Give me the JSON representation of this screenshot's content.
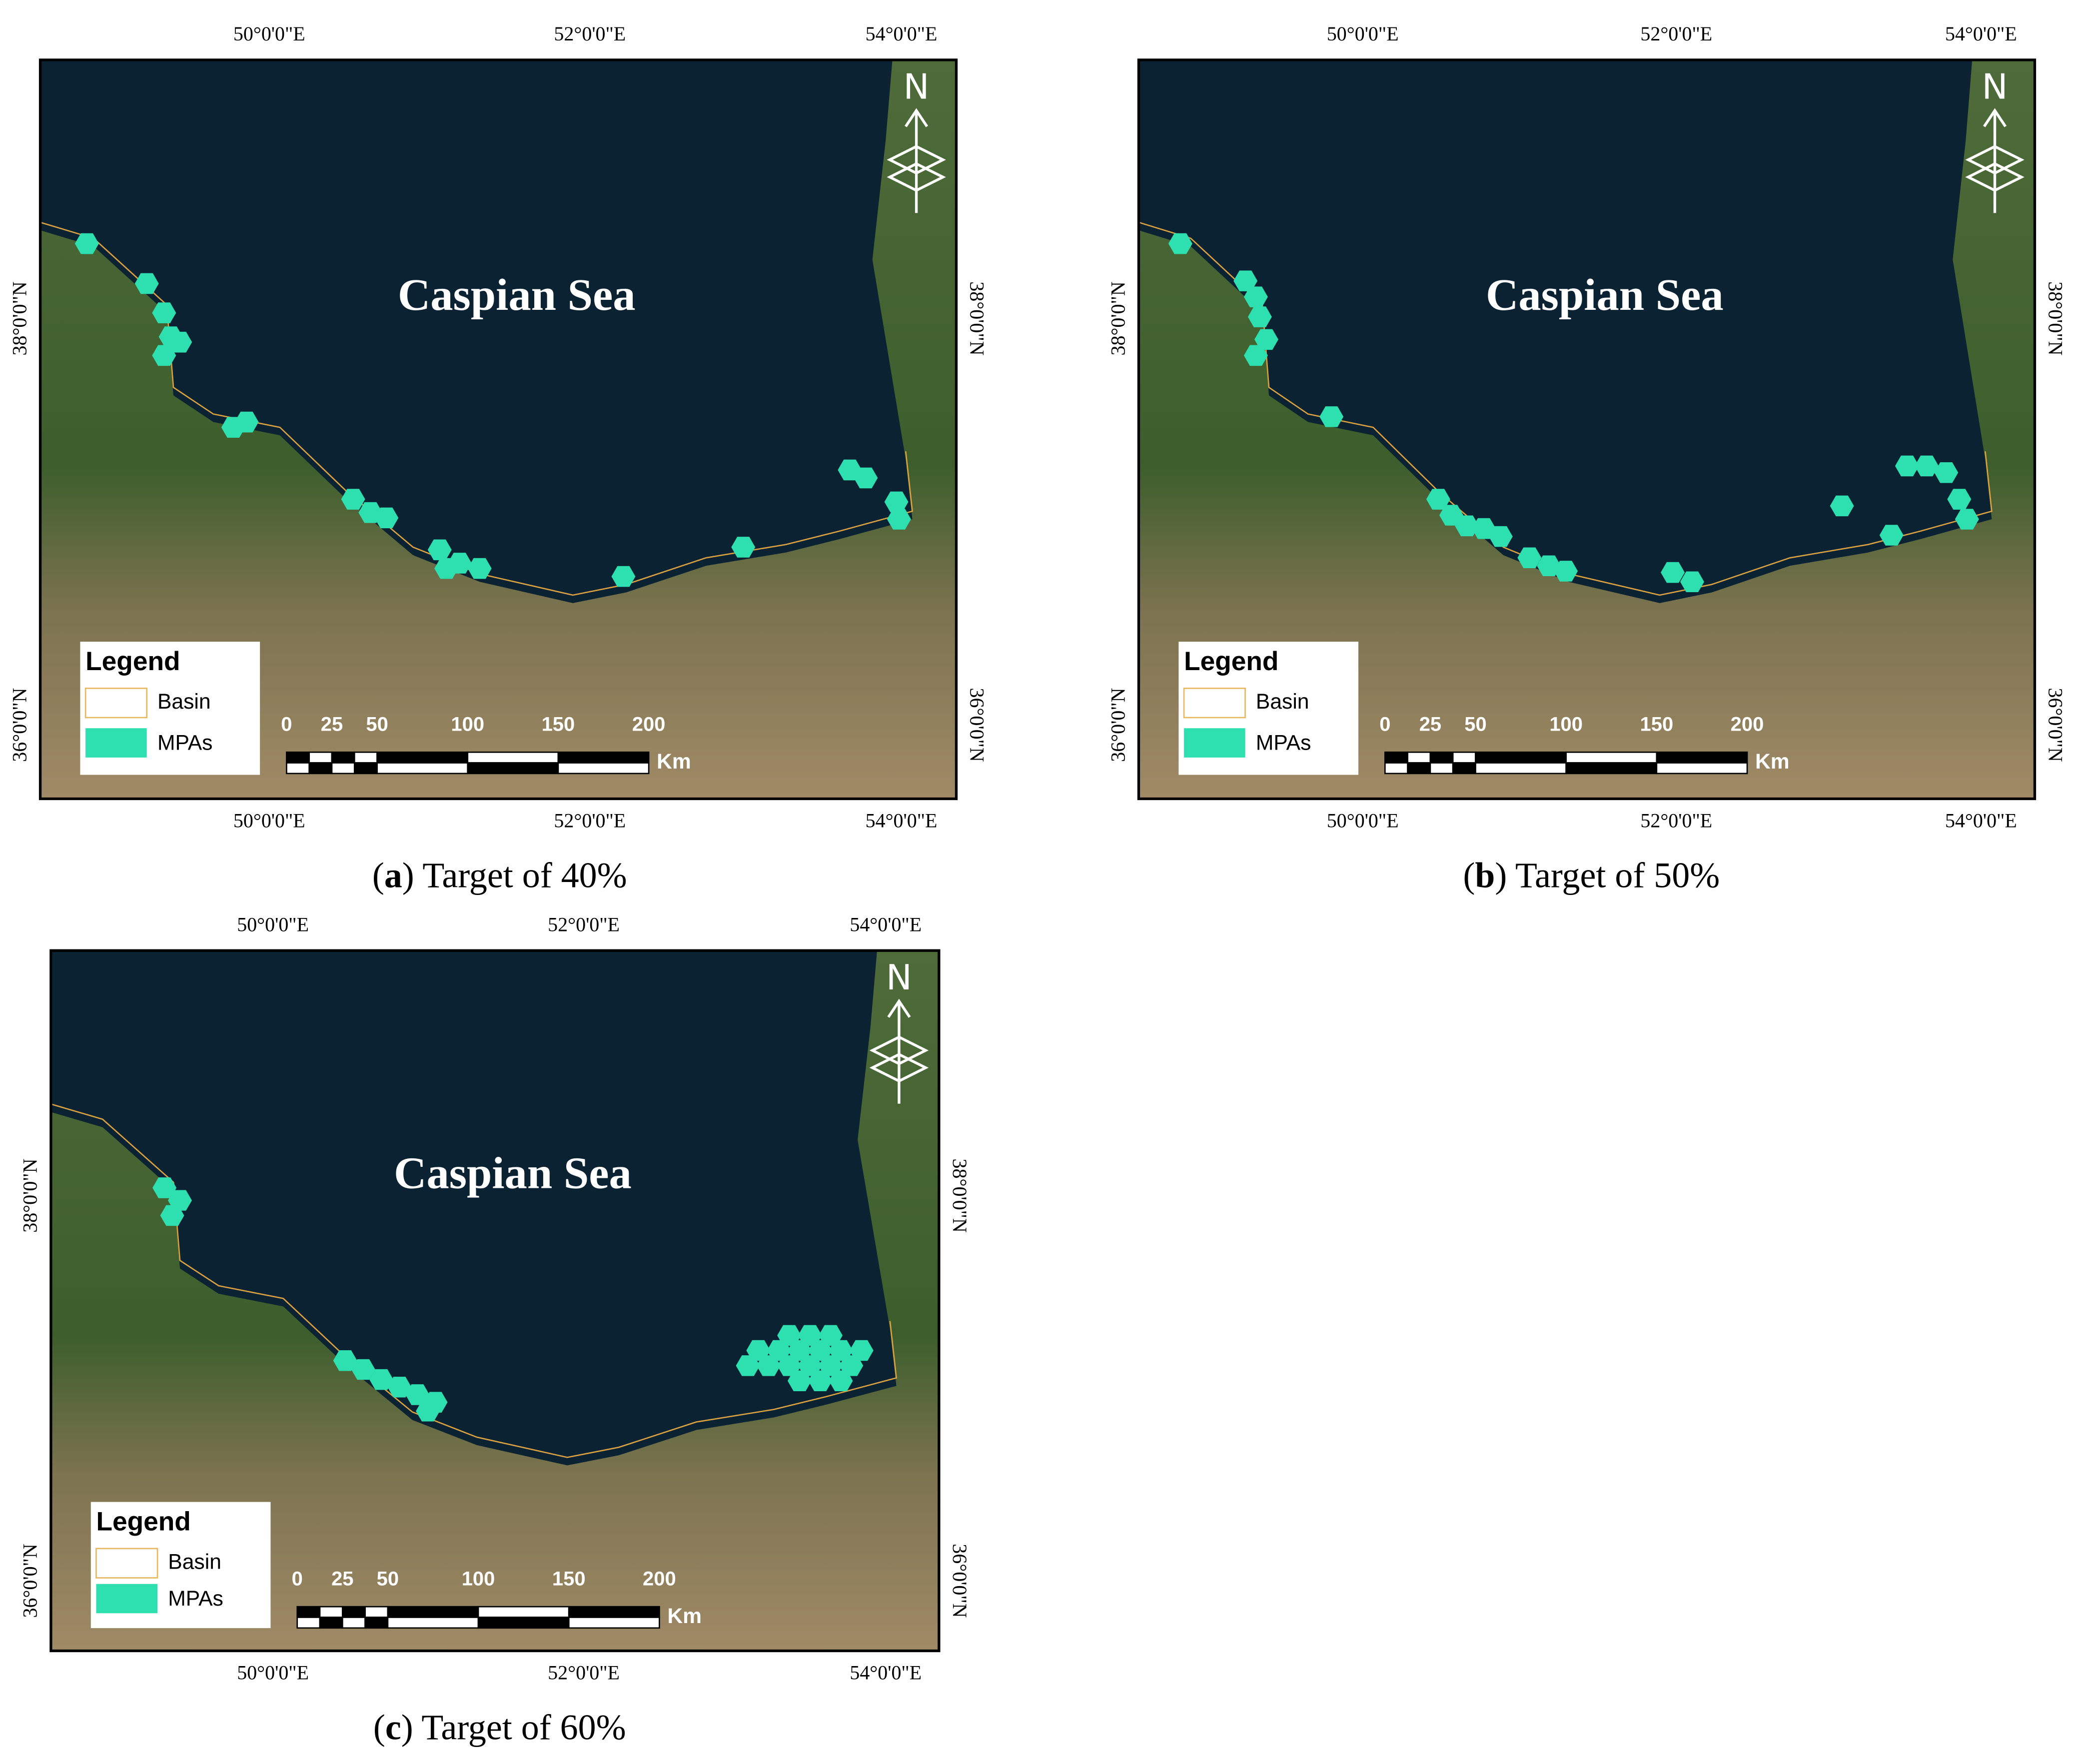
{
  "axes": {
    "east": [
      "50°0'0\"E",
      "52°0'0\"E",
      "54°0'0\"E"
    ],
    "north": [
      "38°0'0\"N",
      "36°0'0\"N"
    ]
  },
  "panels": [
    {
      "map_title": "Caspian Sea",
      "legend_title": "Legend",
      "legend_items": [
        "Basin",
        "MPAs"
      ],
      "north": "N",
      "scale_labels": [
        "0",
        "25",
        "50",
        "100",
        "150",
        "200"
      ],
      "scale_unit": "Km",
      "caption_parts": [
        "(",
        "a",
        ") Target of 40%"
      ]
    },
    {
      "map_title": "Caspian Sea",
      "legend_title": "Legend",
      "legend_items": [
        "Basin",
        "MPAs"
      ],
      "north": "N",
      "scale_labels": [
        "0",
        "25",
        "50",
        "100",
        "150",
        "200"
      ],
      "scale_unit": "Km",
      "caption_parts": [
        "(",
        "b",
        ") Target of 50%"
      ]
    },
    {
      "map_title": "Caspian Sea",
      "legend_title": "Legend",
      "legend_items": [
        "Basin",
        "MPAs"
      ],
      "north": "N",
      "scale_labels": [
        "0",
        "25",
        "50",
        "100",
        "150",
        "200"
      ],
      "scale_unit": "Km",
      "caption_parts": [
        "(",
        "c",
        ") Target of 60%"
      ]
    }
  ]
}
